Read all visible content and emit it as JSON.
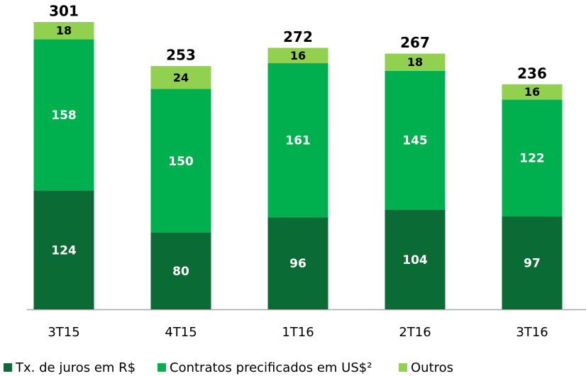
{
  "chart_data": {
    "type": "stacked_bar",
    "categories": [
      "3T15",
      "4T15",
      "1T16",
      "2T16",
      "3T16"
    ],
    "series": [
      {
        "name": "Tx. de juros em R$",
        "color": "#0b6b35",
        "values": [
          124,
          80,
          96,
          104,
          97
        ]
      },
      {
        "name": "Contratos precificados em US$²",
        "color": "#00b04f",
        "values": [
          158,
          150,
          161,
          145,
          122
        ]
      },
      {
        "name": "Outros",
        "color": "#92d050",
        "values": [
          18,
          24,
          16,
          18,
          16
        ]
      }
    ],
    "totals": [
      301,
      253,
      272,
      267,
      236
    ],
    "legend": "bottom"
  }
}
